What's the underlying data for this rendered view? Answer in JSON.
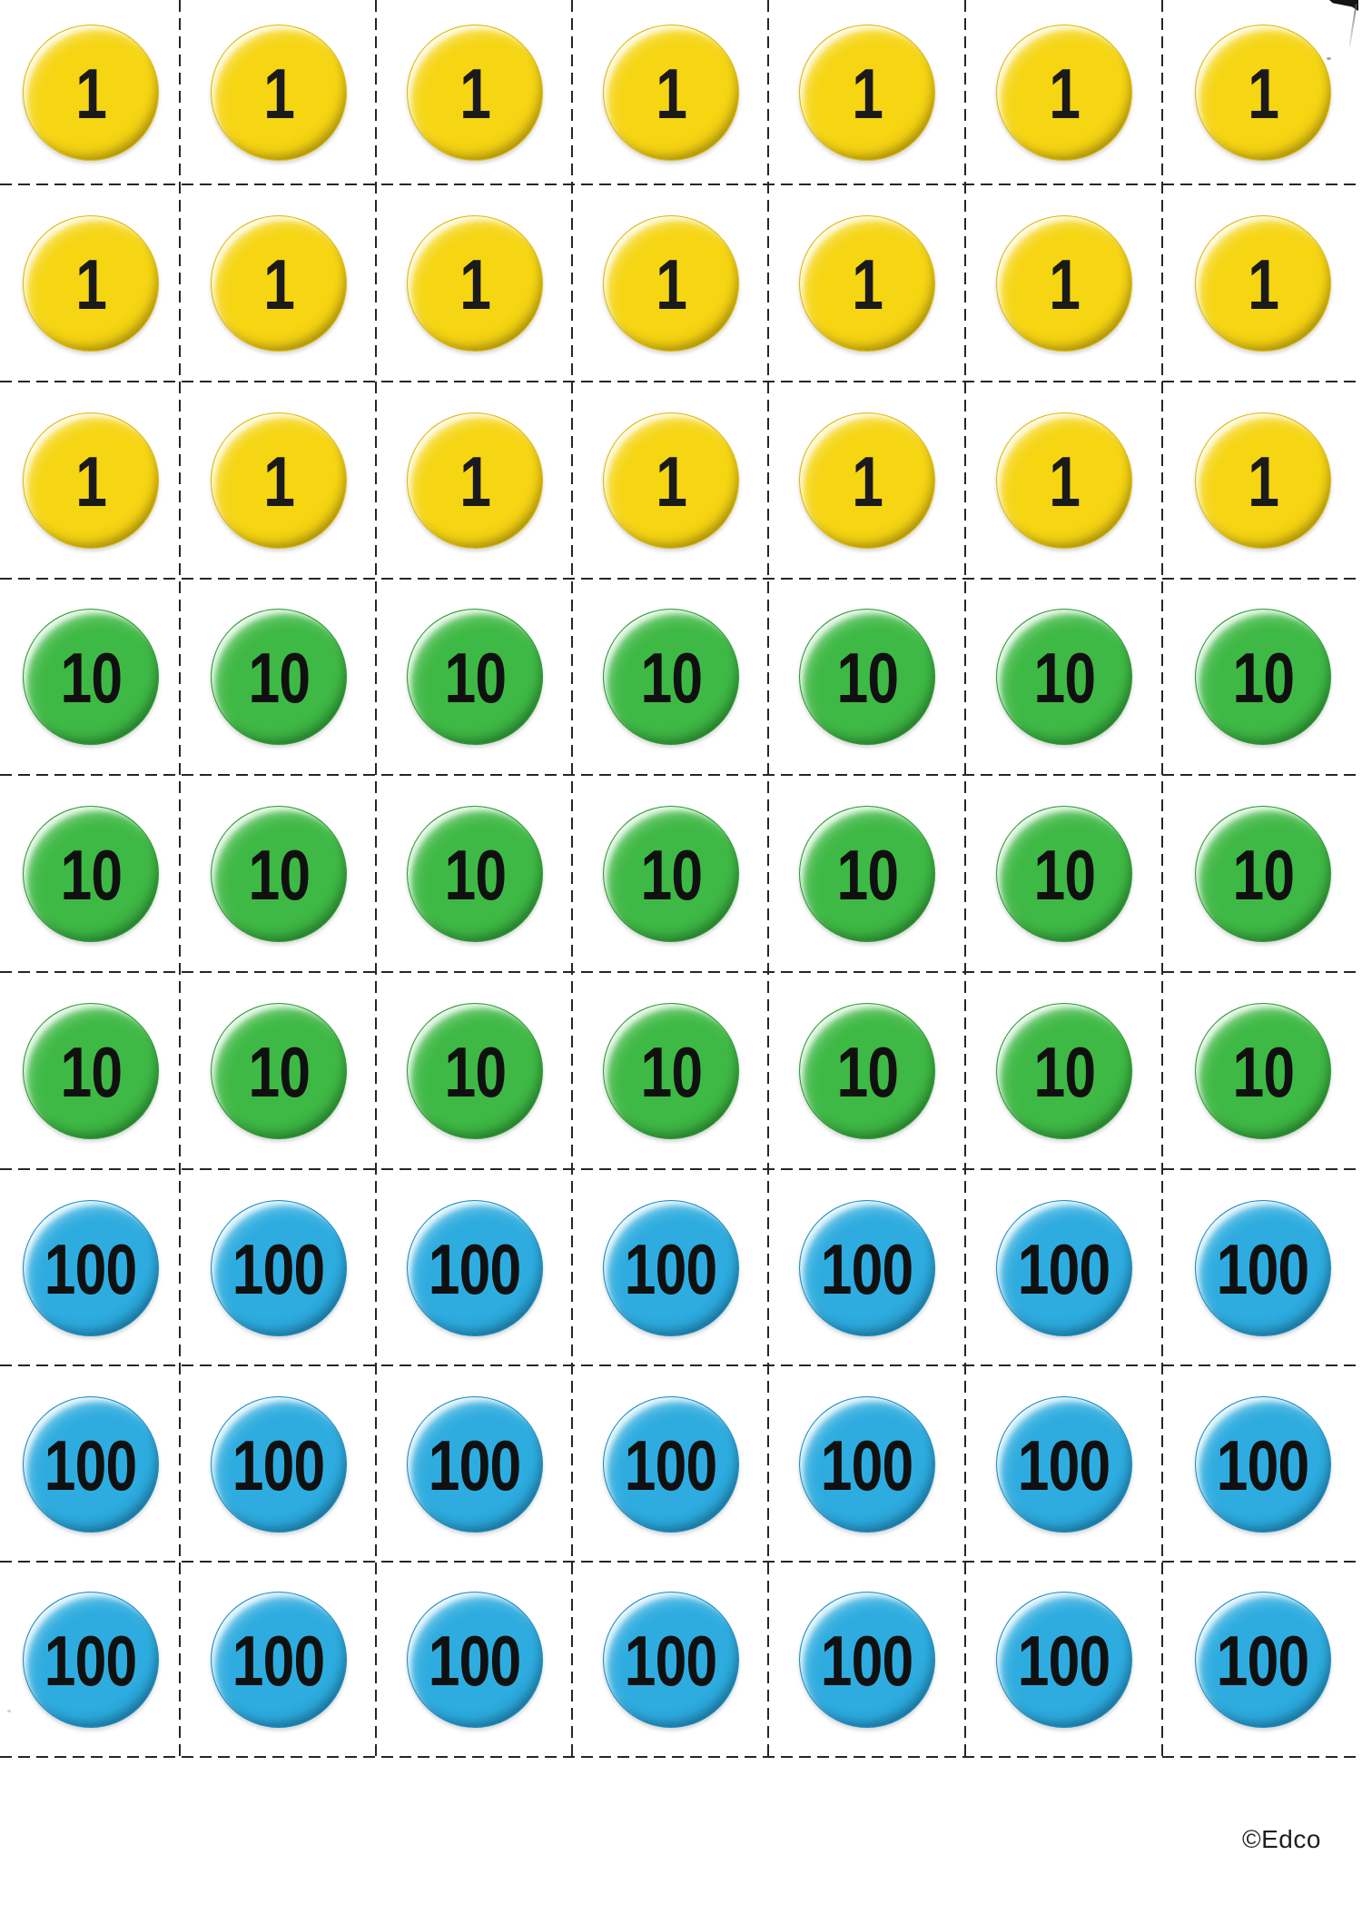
{
  "page": {
    "copyright": "©Edco",
    "background_color": "#ffffff",
    "cut_line_color": "#262626"
  },
  "counter_rows": [
    {
      "value": "1",
      "color": "yellow",
      "count": 7
    },
    {
      "value": "1",
      "color": "yellow",
      "count": 7
    },
    {
      "value": "1",
      "color": "yellow",
      "count": 7
    },
    {
      "value": "10",
      "color": "green",
      "count": 7
    },
    {
      "value": "10",
      "color": "green",
      "count": 7
    },
    {
      "value": "10",
      "color": "green",
      "count": 7
    },
    {
      "value": "100",
      "color": "blue",
      "count": 7
    },
    {
      "value": "100",
      "color": "blue",
      "count": 7
    },
    {
      "value": "100",
      "color": "blue",
      "count": 7
    }
  ],
  "counter_colors": {
    "yellow": {
      "base": "#F6D513",
      "light": "#FBEB67",
      "dark": "#DCB90D",
      "text": "#1A1A1A"
    },
    "green": {
      "base": "#3FB945",
      "light": "#9ADF92",
      "dark": "#2B9A34",
      "text": "#101010"
    },
    "blue": {
      "base": "#2EACDF",
      "light": "#8FD9F3",
      "dark": "#1B8DC3",
      "text": "#101010"
    }
  }
}
